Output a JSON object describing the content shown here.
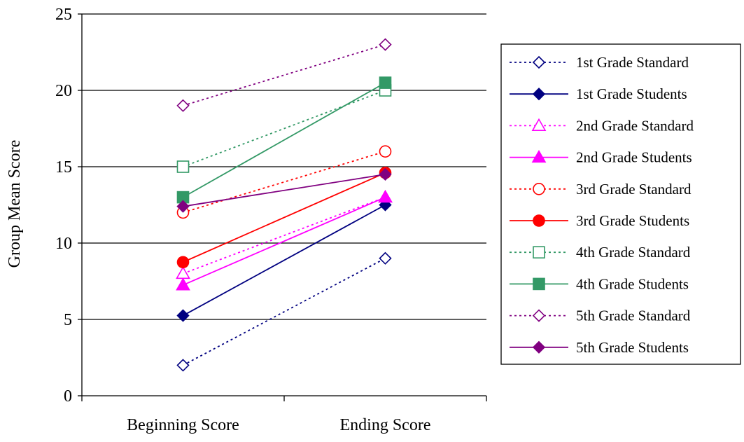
{
  "chart_data": {
    "type": "line",
    "ylabel": "Group Mean Score",
    "xlabel": "",
    "categories": [
      "Beginning Score",
      "Ending Score"
    ],
    "ylim": [
      0,
      25
    ],
    "yticks": [
      0,
      5,
      10,
      15,
      20,
      25
    ],
    "grid": "horizontal",
    "legend_position": "right",
    "series": [
      {
        "name": "1st Grade Standard",
        "values": [
          2,
          9
        ],
        "color": "#000080",
        "dash": "dotted",
        "marker": "diamond",
        "filled": false
      },
      {
        "name": "1st Grade Students",
        "values": [
          5.25,
          12.5
        ],
        "color": "#000080",
        "dash": "solid",
        "marker": "diamond",
        "filled": true
      },
      {
        "name": "2nd Grade Standard",
        "values": [
          8,
          13
        ],
        "color": "#ff00ff",
        "dash": "dotted",
        "marker": "triangle",
        "filled": false
      },
      {
        "name": "2nd Grade Students",
        "values": [
          7.25,
          13
        ],
        "color": "#ff00ff",
        "dash": "solid",
        "marker": "triangle",
        "filled": true
      },
      {
        "name": "3rd Grade Standard",
        "values": [
          12,
          16
        ],
        "color": "#ff0000",
        "dash": "dotted",
        "marker": "circle",
        "filled": false
      },
      {
        "name": "3rd Grade Students",
        "values": [
          8.75,
          14.6
        ],
        "color": "#ff0000",
        "dash": "solid",
        "marker": "circle",
        "filled": true
      },
      {
        "name": "4th Grade Standard",
        "values": [
          15,
          20
        ],
        "color": "#339966",
        "dash": "dotted",
        "marker": "square",
        "filled": false
      },
      {
        "name": "4th Grade Students",
        "values": [
          13,
          20.5
        ],
        "color": "#339966",
        "dash": "solid",
        "marker": "square",
        "filled": true
      },
      {
        "name": "5th Grade Standard",
        "values": [
          19,
          23
        ],
        "color": "#800080",
        "dash": "dotted",
        "marker": "diamond",
        "filled": false
      },
      {
        "name": "5th Grade Students",
        "values": [
          12.4,
          14.5
        ],
        "color": "#800080",
        "dash": "solid",
        "marker": "diamond",
        "filled": true
      }
    ]
  }
}
